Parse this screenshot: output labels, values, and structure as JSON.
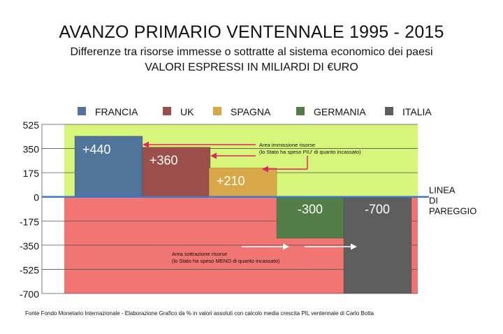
{
  "chart_data": {
    "type": "bar",
    "title": "AVANZO PRIMARIO VENTENNALE 1995 - 2015",
    "subtitle_lines": [
      "Differenze tra risorse immesse o sottratte al sistema economico dei paesi",
      "VALORI ESPRESSI IN MILIARDI DI €URO"
    ],
    "categories": [
      "FRANCIA",
      "UK",
      "SPAGNA",
      "GERMANIA",
      "ITALIA"
    ],
    "values": [
      440,
      360,
      210,
      -300,
      -700
    ],
    "value_labels": [
      "+440",
      "+360",
      "+210",
      "-300",
      "-700"
    ],
    "series": [
      {
        "name": "FRANCIA",
        "color": "#51749a"
      },
      {
        "name": "UK",
        "color": "#9c4e4a"
      },
      {
        "name": "SPAGNA",
        "color": "#d7a748"
      },
      {
        "name": "GERMANIA",
        "color": "#537d48"
      },
      {
        "name": "ITALIA",
        "color": "#5e5e5e"
      }
    ],
    "yticks": [
      525,
      350,
      175,
      0,
      -175,
      -350,
      -525,
      -700
    ],
    "ytick_labels": [
      "525",
      "350",
      "175",
      "0",
      "-175",
      "-350",
      "-525",
      "-700"
    ],
    "ylim": [
      -700,
      525
    ],
    "legend_placement": "top",
    "grid": true,
    "zero_line_label": [
      "LINEA",
      "DI",
      "PAREGGIO"
    ],
    "zero_line_color": "#3d79c6",
    "region_colors": {
      "positive": "#d7f57b",
      "negative": "#f07573"
    },
    "annotations": [
      {
        "lines": [
          "Area immissione risorse",
          "(lo Stato ha speso PIU' di quanto incassato)"
        ],
        "arrow_targets": [
          "FRANCIA",
          "UK",
          "SPAGNA"
        ]
      },
      {
        "lines": [
          "Area sottrazione risorse",
          "(lo Stato ha speso MENO di quanto incassato)"
        ],
        "arrow_targets": [
          "GERMANIA",
          "ITALIA"
        ]
      }
    ],
    "annotation_arrow_colors": [
      "#e0245e",
      "#ffffff"
    ],
    "source_note": "Fonte Fondo Monetario Internazionale - Elaborazione Grafico da % in valori assoluti con calcolo media crescita PIL ventennale di Carlo Botta"
  }
}
